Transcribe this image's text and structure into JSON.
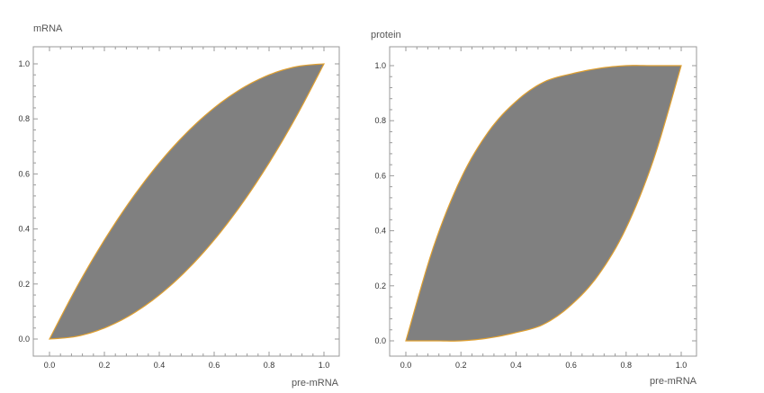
{
  "chart_data": [
    {
      "type": "area",
      "title": "",
      "xlabel": "pre-mRNA",
      "ylabel": "mRNA",
      "xlim": [
        0,
        1
      ],
      "ylim": [
        0,
        1
      ],
      "xticks": [
        "0.0",
        "0.2",
        "0.4",
        "0.6",
        "0.8",
        "1.0"
      ],
      "yticks": [
        "0.0",
        "0.2",
        "0.4",
        "0.6",
        "0.8",
        "1.0"
      ],
      "fill_color": "#808080",
      "edge_color": "#e0a030",
      "boundary": {
        "upper": {
          "x": [
            0,
            0.1,
            0.2,
            0.3,
            0.4,
            0.5,
            0.6,
            0.7,
            0.8,
            0.9,
            1.0
          ],
          "y": [
            0,
            0.19,
            0.36,
            0.51,
            0.64,
            0.75,
            0.84,
            0.91,
            0.96,
            0.99,
            1.0
          ]
        },
        "lower": {
          "x": [
            0,
            0.1,
            0.2,
            0.3,
            0.4,
            0.5,
            0.6,
            0.7,
            0.8,
            0.9,
            1.0
          ],
          "y": [
            0,
            0.01,
            0.04,
            0.09,
            0.16,
            0.25,
            0.36,
            0.49,
            0.64,
            0.81,
            1.0
          ]
        }
      }
    },
    {
      "type": "area",
      "title": "",
      "xlabel": "pre-mRNA",
      "ylabel": "protein",
      "xlim": [
        0,
        1
      ],
      "ylim": [
        0,
        1
      ],
      "xticks": [
        "0.0",
        "0.2",
        "0.4",
        "0.6",
        "0.8",
        "1.0"
      ],
      "yticks": [
        "0.0",
        "0.2",
        "0.4",
        "0.6",
        "0.8",
        "1.0"
      ],
      "fill_color": "#808080",
      "edge_color": "#e0a030",
      "boundary": {
        "upper": {
          "x": [
            0,
            0.1,
            0.2,
            0.3,
            0.4,
            0.5,
            0.6,
            0.7,
            0.8,
            0.9,
            1.0
          ],
          "y": [
            0,
            0.34,
            0.59,
            0.76,
            0.87,
            0.94,
            0.97,
            0.99,
            1.0,
            1.0,
            1.0
          ]
        },
        "lower": {
          "x": [
            0,
            0.1,
            0.2,
            0.3,
            0.4,
            0.5,
            0.6,
            0.7,
            0.8,
            0.9,
            1.0
          ],
          "y": [
            0,
            0.0,
            0.0,
            0.01,
            0.03,
            0.06,
            0.13,
            0.24,
            0.41,
            0.66,
            1.0
          ]
        }
      }
    }
  ]
}
